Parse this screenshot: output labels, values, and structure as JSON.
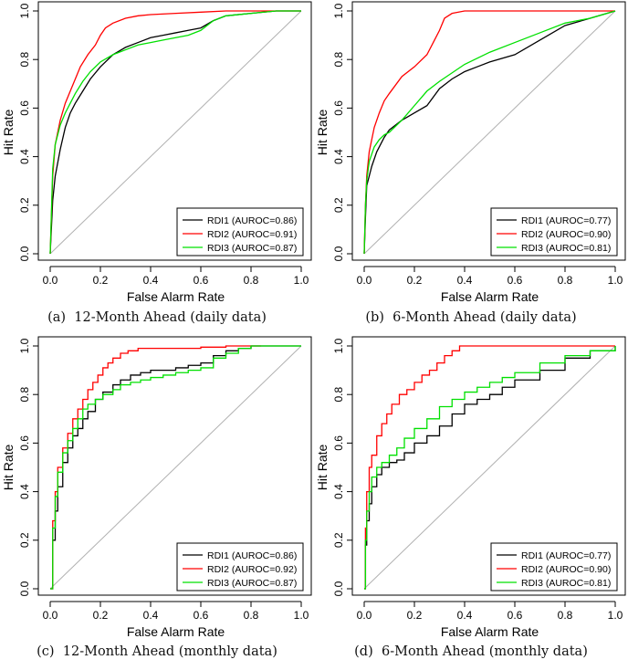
{
  "figure_colors": {
    "RDI1": "#000000",
    "RDI2": "#ff0000",
    "RDI3": "#00e000",
    "diagonal": "#b0b0b0"
  },
  "chart_data": [
    {
      "type": "line",
      "caption_label": "(a)",
      "caption": "12-Month Ahead (daily data)",
      "xlabel": "False Alarm Rate",
      "ylabel": "Hit Rate",
      "xlim": [
        0,
        1
      ],
      "ylim": [
        0,
        1
      ],
      "xticks": [
        "0.0",
        "0.2",
        "0.4",
        "0.6",
        "0.8",
        "1.0"
      ],
      "yticks": [
        "0.0",
        "0.2",
        "0.4",
        "0.6",
        "0.8",
        "1.0"
      ],
      "legend_position": "bottom-right",
      "reference_line": "diagonal",
      "series": [
        {
          "name": "RDI1 (AUROC=0.86)",
          "color": "#000000",
          "x": [
            0,
            0.01,
            0.02,
            0.04,
            0.06,
            0.08,
            0.1,
            0.13,
            0.16,
            0.2,
            0.25,
            0.3,
            0.35,
            0.4,
            0.45,
            0.5,
            0.55,
            0.6,
            0.65,
            0.7,
            0.8,
            0.9,
            1.0
          ],
          "y": [
            0,
            0.22,
            0.32,
            0.43,
            0.52,
            0.58,
            0.62,
            0.67,
            0.72,
            0.77,
            0.82,
            0.85,
            0.87,
            0.89,
            0.9,
            0.91,
            0.92,
            0.93,
            0.96,
            0.98,
            0.99,
            1.0,
            1.0
          ]
        },
        {
          "name": "RDI2 (AUROC=0.91)",
          "color": "#ff0000",
          "x": [
            0,
            0.01,
            0.02,
            0.04,
            0.06,
            0.08,
            0.1,
            0.12,
            0.15,
            0.18,
            0.2,
            0.22,
            0.25,
            0.3,
            0.35,
            0.4,
            0.5,
            0.6,
            0.7,
            0.85,
            1.0
          ],
          "y": [
            0,
            0.32,
            0.45,
            0.55,
            0.62,
            0.67,
            0.72,
            0.77,
            0.82,
            0.86,
            0.9,
            0.93,
            0.95,
            0.97,
            0.98,
            0.985,
            0.99,
            0.995,
            1.0,
            1.0,
            1.0
          ]
        },
        {
          "name": "RDI3 (AUROC=0.87)",
          "color": "#00e000",
          "x": [
            0,
            0.01,
            0.02,
            0.04,
            0.06,
            0.08,
            0.1,
            0.13,
            0.16,
            0.2,
            0.25,
            0.3,
            0.35,
            0.4,
            0.45,
            0.5,
            0.55,
            0.6,
            0.65,
            0.7,
            0.8,
            0.9,
            1.0
          ],
          "y": [
            0,
            0.35,
            0.45,
            0.53,
            0.58,
            0.62,
            0.66,
            0.71,
            0.75,
            0.79,
            0.82,
            0.84,
            0.86,
            0.87,
            0.88,
            0.89,
            0.9,
            0.92,
            0.96,
            0.98,
            0.99,
            1.0,
            1.0
          ]
        }
      ]
    },
    {
      "type": "line",
      "caption_label": "(b)",
      "caption": "6-Month Ahead (daily data)",
      "xlabel": "False Alarm Rate",
      "ylabel": "Hit Rate",
      "xlim": [
        0,
        1
      ],
      "ylim": [
        0,
        1
      ],
      "xticks": [
        "0.0",
        "0.2",
        "0.4",
        "0.6",
        "0.8",
        "1.0"
      ],
      "yticks": [
        "0.0",
        "0.2",
        "0.4",
        "0.6",
        "0.8",
        "1.0"
      ],
      "legend_position": "bottom-right",
      "reference_line": "diagonal",
      "series": [
        {
          "name": "RDI1 (AUROC=0.77)",
          "color": "#000000",
          "x": [
            0,
            0.005,
            0.01,
            0.02,
            0.03,
            0.05,
            0.08,
            0.1,
            0.15,
            0.2,
            0.25,
            0.3,
            0.35,
            0.4,
            0.45,
            0.5,
            0.6,
            0.7,
            0.8,
            0.9,
            1.0
          ],
          "y": [
            0,
            0.15,
            0.28,
            0.32,
            0.36,
            0.42,
            0.48,
            0.51,
            0.55,
            0.58,
            0.61,
            0.68,
            0.72,
            0.75,
            0.77,
            0.79,
            0.82,
            0.88,
            0.94,
            0.97,
            1.0
          ]
        },
        {
          "name": "RDI2 (AUROC=0.90)",
          "color": "#ff0000",
          "x": [
            0,
            0.005,
            0.01,
            0.02,
            0.04,
            0.06,
            0.08,
            0.1,
            0.15,
            0.2,
            0.25,
            0.28,
            0.3,
            0.32,
            0.35,
            0.4,
            0.5,
            0.7,
            1.0
          ],
          "y": [
            0,
            0.2,
            0.32,
            0.42,
            0.52,
            0.58,
            0.63,
            0.66,
            0.73,
            0.77,
            0.82,
            0.88,
            0.92,
            0.97,
            0.99,
            1.0,
            1.0,
            1.0,
            1.0
          ]
        },
        {
          "name": "RDI3 (AUROC=0.81)",
          "color": "#00e000",
          "x": [
            0,
            0.005,
            0.01,
            0.02,
            0.04,
            0.06,
            0.08,
            0.1,
            0.15,
            0.2,
            0.25,
            0.3,
            0.4,
            0.5,
            0.6,
            0.7,
            0.8,
            0.9,
            1.0
          ],
          "y": [
            0,
            0.2,
            0.3,
            0.38,
            0.44,
            0.47,
            0.49,
            0.5,
            0.55,
            0.61,
            0.67,
            0.71,
            0.78,
            0.83,
            0.87,
            0.91,
            0.95,
            0.97,
            1.0
          ]
        }
      ]
    },
    {
      "type": "line",
      "caption_label": "(c)",
      "caption": "12-Month Ahead (monthly data)",
      "xlabel": "False Alarm Rate",
      "ylabel": "Hit Rate",
      "xlim": [
        0,
        1
      ],
      "ylim": [
        0,
        1
      ],
      "xticks": [
        "0.0",
        "0.2",
        "0.4",
        "0.6",
        "0.8",
        "1.0"
      ],
      "yticks": [
        "0.0",
        "0.2",
        "0.4",
        "0.6",
        "0.8",
        "1.0"
      ],
      "legend_position": "bottom-right",
      "reference_line": "diagonal",
      "series": [
        {
          "name": "RDI1 (AUROC=0.86)",
          "color": "#000000",
          "step": true,
          "x": [
            0,
            0.01,
            0.02,
            0.03,
            0.05,
            0.07,
            0.09,
            0.11,
            0.13,
            0.15,
            0.18,
            0.21,
            0.25,
            0.28,
            0.32,
            0.36,
            0.4,
            0.45,
            0.5,
            0.55,
            0.6,
            0.65,
            0.7,
            0.75,
            0.8,
            1.0
          ],
          "y": [
            0,
            0.2,
            0.32,
            0.42,
            0.52,
            0.58,
            0.63,
            0.66,
            0.7,
            0.73,
            0.78,
            0.81,
            0.84,
            0.86,
            0.88,
            0.89,
            0.9,
            0.9,
            0.91,
            0.92,
            0.93,
            0.96,
            0.98,
            0.99,
            1.0,
            1.0
          ]
        },
        {
          "name": "RDI2 (AUROC=0.92)",
          "color": "#ff0000",
          "step": true,
          "x": [
            0,
            0.01,
            0.02,
            0.03,
            0.05,
            0.07,
            0.09,
            0.11,
            0.13,
            0.15,
            0.17,
            0.19,
            0.21,
            0.23,
            0.25,
            0.28,
            0.31,
            0.35,
            0.4,
            0.45,
            0.5,
            0.6,
            0.7,
            0.8,
            0.84
          ],
          "y": [
            0,
            0.28,
            0.4,
            0.5,
            0.58,
            0.64,
            0.7,
            0.74,
            0.78,
            0.82,
            0.85,
            0.88,
            0.91,
            0.93,
            0.95,
            0.97,
            0.98,
            0.99,
            0.99,
            0.99,
            0.99,
            0.995,
            1.0,
            1.0,
            1.0
          ]
        },
        {
          "name": "RDI3 (AUROC=0.87)",
          "color": "#00e000",
          "step": true,
          "x": [
            0,
            0.01,
            0.02,
            0.03,
            0.05,
            0.07,
            0.09,
            0.11,
            0.13,
            0.15,
            0.18,
            0.21,
            0.25,
            0.28,
            0.32,
            0.36,
            0.4,
            0.45,
            0.5,
            0.55,
            0.6,
            0.65,
            0.7,
            0.75,
            0.8,
            1.0
          ],
          "y": [
            0,
            0.25,
            0.38,
            0.48,
            0.56,
            0.61,
            0.66,
            0.7,
            0.74,
            0.76,
            0.78,
            0.8,
            0.82,
            0.84,
            0.85,
            0.86,
            0.87,
            0.88,
            0.89,
            0.9,
            0.91,
            0.95,
            0.97,
            0.99,
            1.0,
            1.0
          ]
        }
      ]
    },
    {
      "type": "line",
      "caption_label": "(d)",
      "caption": "6-Month Ahead (monthly data)",
      "xlabel": "False Alarm Rate",
      "ylabel": "Hit Rate",
      "xlim": [
        0,
        1
      ],
      "ylim": [
        0,
        1
      ],
      "xticks": [
        "0.0",
        "0.2",
        "0.4",
        "0.6",
        "0.8",
        "1.0"
      ],
      "yticks": [
        "0.0",
        "0.2",
        "0.4",
        "0.6",
        "0.8",
        "1.0"
      ],
      "legend_position": "bottom-right",
      "reference_line": "diagonal",
      "series": [
        {
          "name": "RDI1 (AUROC=0.77)",
          "color": "#000000",
          "step": true,
          "x": [
            0,
            0.005,
            0.01,
            0.02,
            0.03,
            0.05,
            0.07,
            0.1,
            0.13,
            0.16,
            0.2,
            0.25,
            0.3,
            0.35,
            0.4,
            0.45,
            0.5,
            0.55,
            0.6,
            0.7,
            0.8,
            0.9,
            1.0
          ],
          "y": [
            0,
            0.18,
            0.28,
            0.35,
            0.42,
            0.47,
            0.5,
            0.52,
            0.53,
            0.56,
            0.6,
            0.63,
            0.67,
            0.72,
            0.76,
            0.78,
            0.8,
            0.83,
            0.86,
            0.9,
            0.95,
            0.98,
            1.0
          ]
        },
        {
          "name": "RDI2 (AUROC=0.90)",
          "color": "#ff0000",
          "step": true,
          "x": [
            0,
            0.005,
            0.01,
            0.02,
            0.03,
            0.05,
            0.07,
            0.09,
            0.11,
            0.14,
            0.17,
            0.2,
            0.23,
            0.26,
            0.29,
            0.32,
            0.35,
            0.38,
            0.45,
            0.6,
            0.8,
            1.0
          ],
          "y": [
            0,
            0.25,
            0.4,
            0.5,
            0.55,
            0.63,
            0.68,
            0.72,
            0.76,
            0.8,
            0.82,
            0.85,
            0.88,
            0.9,
            0.93,
            0.96,
            0.98,
            1.0,
            1.0,
            1.0,
            1.0,
            1.0
          ]
        },
        {
          "name": "RDI3 (AUROC=0.81)",
          "color": "#00e000",
          "step": true,
          "x": [
            0,
            0.005,
            0.01,
            0.02,
            0.03,
            0.05,
            0.07,
            0.1,
            0.13,
            0.16,
            0.2,
            0.25,
            0.3,
            0.35,
            0.4,
            0.45,
            0.5,
            0.55,
            0.6,
            0.7,
            0.8,
            0.9,
            1.0
          ],
          "y": [
            0,
            0.2,
            0.32,
            0.4,
            0.46,
            0.5,
            0.52,
            0.55,
            0.58,
            0.62,
            0.66,
            0.7,
            0.75,
            0.78,
            0.81,
            0.83,
            0.85,
            0.87,
            0.89,
            0.93,
            0.96,
            0.98,
            1.0
          ]
        }
      ]
    }
  ]
}
